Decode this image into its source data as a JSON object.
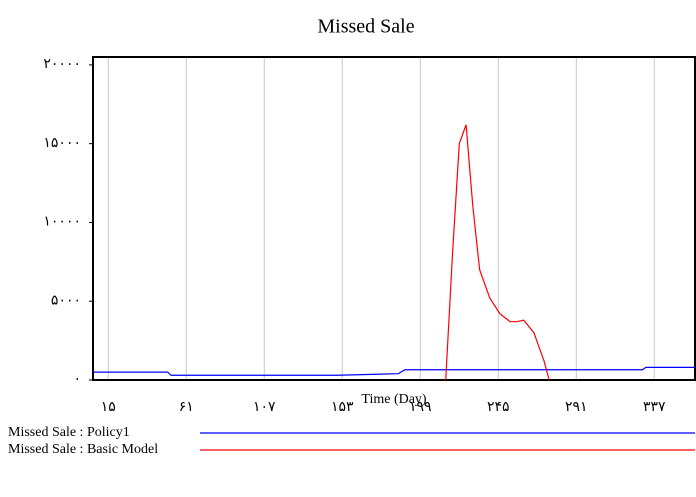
{
  "chart_data": {
    "type": "line",
    "title": "Missed Sale",
    "x_label": "Time (Day)",
    "x": [
      6,
      50,
      52,
      150,
      186,
      190,
      214,
      218,
      222,
      226,
      230,
      234,
      240,
      246,
      252,
      256,
      260,
      266,
      272,
      275,
      330,
      332,
      361
    ],
    "series": [
      {
        "name": "Missed Sale : Policy1",
        "color": "#0000ff",
        "values": [
          500,
          500,
          300,
          300,
          400,
          650,
          650,
          650,
          650,
          650,
          650,
          650,
          650,
          650,
          650,
          650,
          650,
          650,
          650,
          650,
          650,
          800,
          800
        ]
      },
      {
        "name": "Missed Sale : Basic Model",
        "color": "#ff0000",
        "values": [
          null,
          null,
          null,
          null,
          null,
          null,
          0,
          8000,
          15000,
          16200,
          11000,
          7000,
          5200,
          4200,
          3700,
          3700,
          3800,
          3000,
          1200,
          0,
          null,
          null,
          null
        ]
      }
    ],
    "xlim": [
      6,
      361
    ],
    "xticks": [
      {
        "value": 15,
        "label": "۱۵"
      },
      {
        "value": 61,
        "label": "۶۱"
      },
      {
        "value": 107,
        "label": "۱۰۷"
      },
      {
        "value": 153,
        "label": "۱۵۳"
      },
      {
        "value": 199,
        "label": "۱۹۹"
      },
      {
        "value": 245,
        "label": "۲۴۵"
      },
      {
        "value": 291,
        "label": "۲۹۱"
      },
      {
        "value": 337,
        "label": "۳۳۷"
      }
    ],
    "ylim": [
      0,
      20500
    ],
    "yticks": [
      {
        "value": 0,
        "label": "۰"
      },
      {
        "value": 5000,
        "label": "۵۰۰۰"
      },
      {
        "value": 10000,
        "label": "۱۰۰۰۰"
      },
      {
        "value": 15000,
        "label": "۱۵۰۰۰"
      },
      {
        "value": 20000,
        "label": "۲۰۰۰۰"
      }
    ],
    "grid": true
  }
}
